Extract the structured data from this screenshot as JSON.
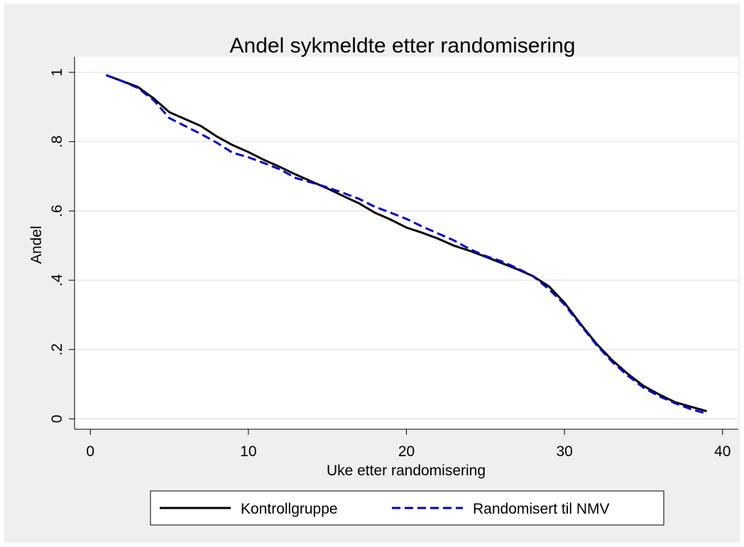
{
  "chart_data": {
    "type": "line",
    "title": "Andel sykmeldte etter randomisering",
    "xlabel": "Uke etter randomisering",
    "ylabel": "Andel",
    "x": [
      1,
      2,
      3,
      4,
      5,
      6,
      7,
      8,
      9,
      10,
      11,
      12,
      13,
      14,
      15,
      16,
      17,
      18,
      19,
      20,
      21,
      22,
      23,
      24,
      25,
      26,
      27,
      28,
      29,
      30,
      31,
      32,
      33,
      34,
      35,
      36,
      37,
      38,
      39
    ],
    "series": [
      {
        "name": "Kontrollgruppe",
        "color": "#000000",
        "dash": false,
        "values": [
          0.992,
          0.975,
          0.958,
          0.925,
          0.885,
          0.865,
          0.845,
          0.815,
          0.79,
          0.77,
          0.747,
          0.727,
          0.705,
          0.685,
          0.665,
          0.643,
          0.622,
          0.595,
          0.575,
          0.552,
          0.537,
          0.52,
          0.5,
          0.485,
          0.468,
          0.45,
          0.432,
          0.412,
          0.383,
          0.335,
          0.275,
          0.218,
          0.17,
          0.13,
          0.095,
          0.07,
          0.048,
          0.035,
          0.022
        ]
      },
      {
        "name": "Randomisert til NMV",
        "color": "#0000cc",
        "dash": true,
        "values": [
          0.992,
          0.975,
          0.955,
          0.92,
          0.868,
          0.845,
          0.822,
          0.797,
          0.768,
          0.755,
          0.738,
          0.72,
          0.695,
          0.682,
          0.668,
          0.652,
          0.635,
          0.612,
          0.595,
          0.577,
          0.555,
          0.535,
          0.515,
          0.49,
          0.47,
          0.455,
          0.435,
          0.412,
          0.375,
          0.33,
          0.272,
          0.215,
          0.165,
          0.125,
          0.09,
          0.065,
          0.045,
          0.028,
          0.015
        ]
      }
    ],
    "xlim": [
      -1,
      41
    ],
    "xticks": [
      0,
      10,
      20,
      30,
      40
    ],
    "ylim": [
      -0.03,
      1.045
    ],
    "yticks": [
      0,
      {
        "value": 0.2,
        "label": ".2"
      },
      {
        "value": 0.4,
        "label": ".4"
      },
      {
        "value": 0.6,
        "label": ".6"
      },
      {
        "value": 0.8,
        "label": ".8"
      },
      1
    ],
    "grid": true,
    "legend": "bottom"
  }
}
